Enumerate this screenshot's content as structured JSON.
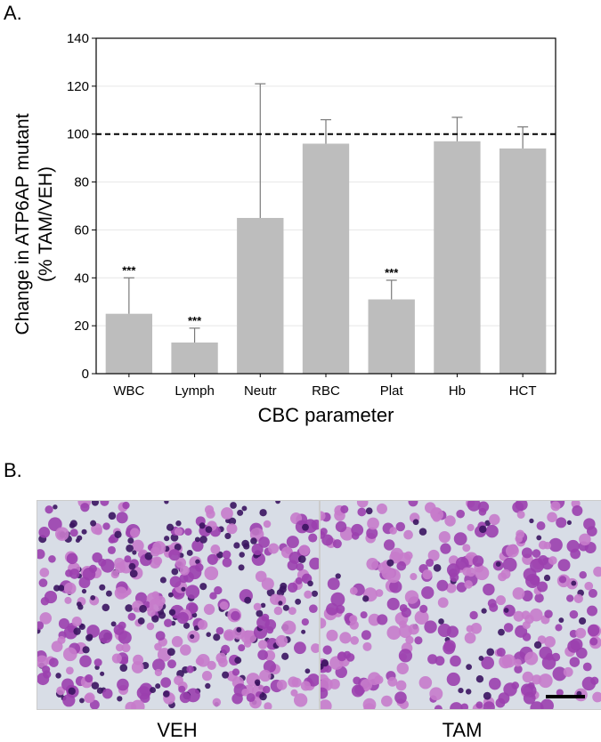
{
  "panels": {
    "a_label": "A.",
    "b_label": "B."
  },
  "chart_data": {
    "type": "bar",
    "categories": [
      "WBC",
      "Lymph",
      "Neutr",
      "RBC",
      "Plat",
      "Hb",
      "HCT"
    ],
    "values": [
      25,
      13,
      65,
      96,
      31,
      97,
      94
    ],
    "errors": [
      15,
      6,
      56,
      10,
      8,
      10,
      9
    ],
    "annotations": [
      "***",
      "***",
      "",
      "",
      "***",
      "",
      ""
    ],
    "reference_line": 100,
    "xlabel": "CBC parameter",
    "ylabel_line1": "Change in ATP6AP mutant",
    "ylabel_line2": "(% TAM/VEH)",
    "ylim": [
      0,
      140
    ],
    "yticks": [
      0,
      20,
      40,
      60,
      80,
      100,
      120,
      140
    ],
    "bar_color": "#bdbdbd",
    "error_color": "#7a7a7a",
    "grid": true
  },
  "micrographs": {
    "left_caption": "VEH",
    "right_caption": "TAM",
    "stain_dark": "#3b1460",
    "stain_medium": "#9b3fae",
    "stain_light": "#c77bcb",
    "background": "#d8dde6"
  }
}
